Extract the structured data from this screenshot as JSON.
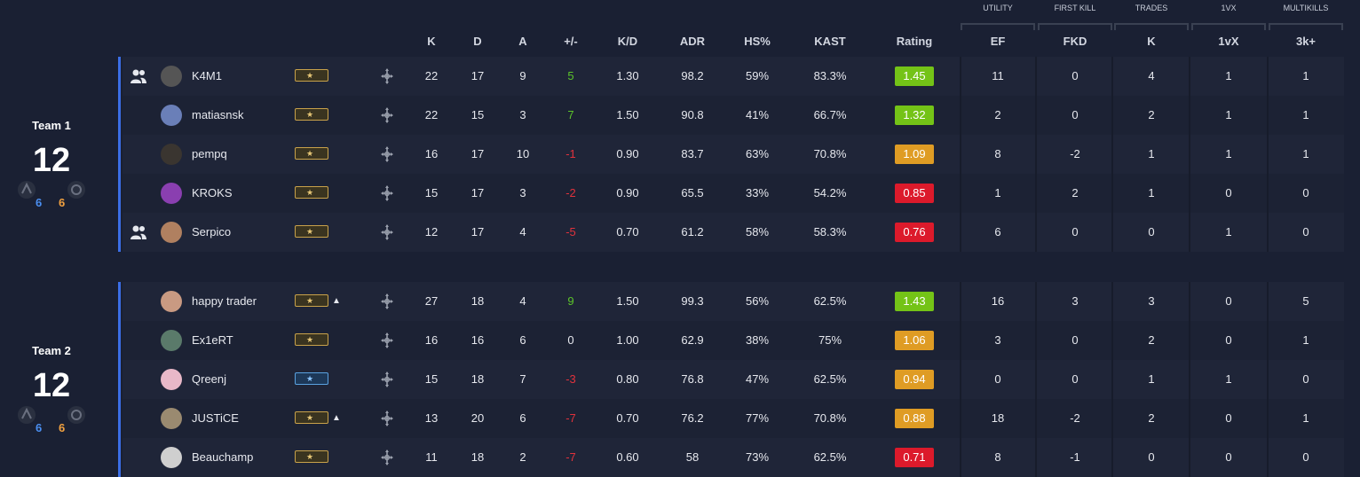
{
  "colors": {
    "background": "#1a2033",
    "row": "#1f2538",
    "team_bar": "#3b6ee6",
    "good": "#74c317",
    "avg": "#df9c24",
    "bad": "#dc1a2b",
    "positive": "#5cc52a",
    "negative": "#e0323c",
    "ct_blue": "#4a8ef0",
    "t_orange": "#f0a040"
  },
  "group_headers": {
    "utility": "UTILITY",
    "first_kill": "FIRST KILL",
    "trades": "TRADES",
    "one_vx": "1VX",
    "multikills": "MULTIKILLS"
  },
  "columns": {
    "k": "K",
    "d": "D",
    "a": "A",
    "pm": "+/-",
    "kd": "K/D",
    "adr": "ADR",
    "hs": "HS%",
    "kast": "KAST",
    "rating": "Rating",
    "ef": "EF",
    "fkd": "FKD",
    "trades_k": "K",
    "vx": "1vX",
    "k3": "3k+"
  },
  "teams": [
    {
      "name": "Team 1",
      "score": "12",
      "ct_rounds": "6",
      "t_rounds": "6",
      "players": [
        {
          "name": "K4M1",
          "party": true,
          "rank": "gold",
          "caret": false,
          "k": "22",
          "d": "17",
          "a": "9",
          "pm": "5",
          "kd": "1.30",
          "adr": "98.2",
          "hs": "59%",
          "kast": "83.3%",
          "rating": "1.45",
          "tier": "good",
          "ef": "11",
          "fkd": "0",
          "tk": "4",
          "vx": "1",
          "k3": "1",
          "avatar": "#555555"
        },
        {
          "name": "matiasnsk",
          "party": false,
          "rank": "gold",
          "caret": false,
          "k": "22",
          "d": "15",
          "a": "3",
          "pm": "7",
          "kd": "1.50",
          "adr": "90.8",
          "hs": "41%",
          "kast": "66.7%",
          "rating": "1.32",
          "tier": "good",
          "ef": "2",
          "fkd": "0",
          "tk": "2",
          "vx": "1",
          "k3": "1",
          "avatar": "#6a7fb8"
        },
        {
          "name": "pempq",
          "party": false,
          "rank": "gold",
          "caret": false,
          "k": "16",
          "d": "17",
          "a": "10",
          "pm": "-1",
          "kd": "0.90",
          "adr": "83.7",
          "hs": "63%",
          "kast": "70.8%",
          "rating": "1.09",
          "tier": "avg",
          "ef": "8",
          "fkd": "-2",
          "tk": "1",
          "vx": "1",
          "k3": "1",
          "avatar": "#3a3530"
        },
        {
          "name": "KROKS",
          "party": false,
          "rank": "gold",
          "caret": false,
          "k": "15",
          "d": "17",
          "a": "3",
          "pm": "-2",
          "kd": "0.90",
          "adr": "65.5",
          "hs": "33%",
          "kast": "54.2%",
          "rating": "0.85",
          "tier": "bad",
          "ef": "1",
          "fkd": "2",
          "tk": "1",
          "vx": "0",
          "k3": "0",
          "avatar": "#8a3fb0"
        },
        {
          "name": "Serpico",
          "party": true,
          "rank": "gold",
          "caret": false,
          "k": "12",
          "d": "17",
          "a": "4",
          "pm": "-5",
          "kd": "0.70",
          "adr": "61.2",
          "hs": "58%",
          "kast": "58.3%",
          "rating": "0.76",
          "tier": "bad",
          "ef": "6",
          "fkd": "0",
          "tk": "0",
          "vx": "1",
          "k3": "0",
          "avatar": "#b08060"
        }
      ]
    },
    {
      "name": "Team 2",
      "score": "12",
      "ct_rounds": "6",
      "t_rounds": "6",
      "players": [
        {
          "name": "happy trader",
          "party": false,
          "rank": "gold",
          "caret": true,
          "k": "27",
          "d": "18",
          "a": "4",
          "pm": "9",
          "kd": "1.50",
          "adr": "99.3",
          "hs": "56%",
          "kast": "62.5%",
          "rating": "1.43",
          "tier": "good",
          "ef": "16",
          "fkd": "3",
          "tk": "3",
          "vx": "0",
          "k3": "5",
          "avatar": "#c99a82"
        },
        {
          "name": "Ex1eRT",
          "party": false,
          "rank": "gold",
          "caret": false,
          "k": "16",
          "d": "16",
          "a": "6",
          "pm": "0",
          "kd": "1.00",
          "adr": "62.9",
          "hs": "38%",
          "kast": "75%",
          "rating": "1.06",
          "tier": "avg",
          "ef": "3",
          "fkd": "0",
          "tk": "2",
          "vx": "0",
          "k3": "1",
          "avatar": "#5a7a6a"
        },
        {
          "name": "Qreenj",
          "party": false,
          "rank": "blue",
          "caret": false,
          "k": "15",
          "d": "18",
          "a": "7",
          "pm": "-3",
          "kd": "0.80",
          "adr": "76.8",
          "hs": "47%",
          "kast": "62.5%",
          "rating": "0.94",
          "tier": "avg",
          "ef": "0",
          "fkd": "0",
          "tk": "1",
          "vx": "1",
          "k3": "0",
          "avatar": "#e8b8c8"
        },
        {
          "name": "JUSTiCE",
          "party": false,
          "rank": "gold",
          "caret": true,
          "k": "13",
          "d": "20",
          "a": "6",
          "pm": "-7",
          "kd": "0.70",
          "adr": "76.2",
          "hs": "77%",
          "kast": "70.8%",
          "rating": "0.88",
          "tier": "avg",
          "ef": "18",
          "fkd": "-2",
          "tk": "2",
          "vx": "0",
          "k3": "1",
          "avatar": "#9a8a70"
        },
        {
          "name": "Beauchamp",
          "party": false,
          "rank": "gold",
          "caret": false,
          "k": "11",
          "d": "18",
          "a": "2",
          "pm": "-7",
          "kd": "0.60",
          "adr": "58",
          "hs": "73%",
          "kast": "62.5%",
          "rating": "0.71",
          "tier": "bad",
          "ef": "8",
          "fkd": "-1",
          "tk": "0",
          "vx": "0",
          "k3": "0",
          "avatar": "#cfcfcf"
        }
      ]
    }
  ]
}
